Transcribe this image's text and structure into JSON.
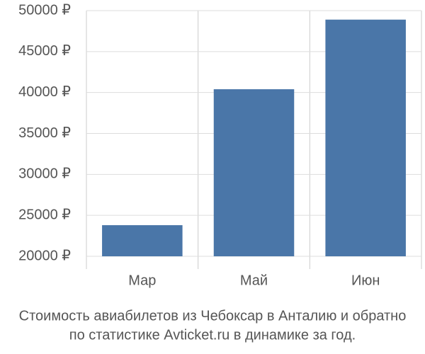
{
  "chart_data": {
    "type": "bar",
    "title_lines": [
      "Стоимость авиабилетов из Чебоксар в Анталию и обратно",
      "по статистике Avticket.ru в динамике за год."
    ],
    "categories": [
      "Мар",
      "Май",
      "Июн"
    ],
    "values": [
      23800,
      40400,
      48900
    ],
    "color": "#4a76a8",
    "ylim": [
      20000,
      50000
    ],
    "yticks": [
      {
        "value": 20000,
        "label": "20000 ₽"
      },
      {
        "value": 25000,
        "label": "25000 ₽"
      },
      {
        "value": 30000,
        "label": "30000 ₽"
      },
      {
        "value": 35000,
        "label": "35000 ₽"
      },
      {
        "value": 40000,
        "label": "40000 ₽"
      },
      {
        "value": 45000,
        "label": "45000 ₽"
      },
      {
        "value": 50000,
        "label": "50000 ₽"
      }
    ],
    "grid": true
  }
}
